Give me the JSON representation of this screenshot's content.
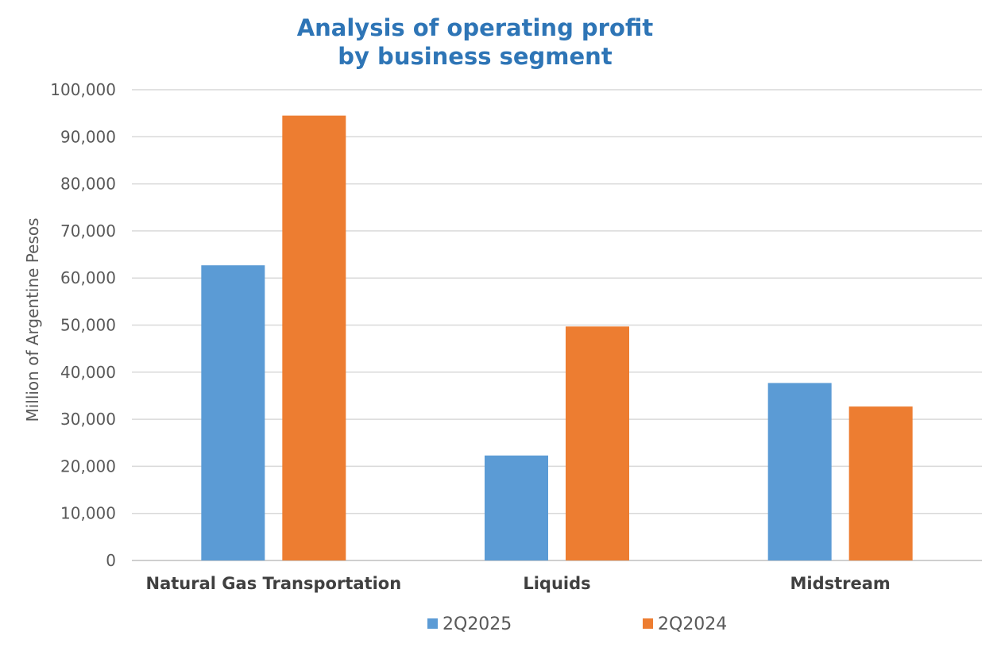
{
  "chart_data": {
    "type": "bar",
    "title": [
      "Analysis of operating profit",
      "by business segment"
    ],
    "ylabel": "Million of Argentine Pesos",
    "categories": [
      "Natural Gas Transportation",
      "Liquids",
      "Midstream"
    ],
    "series": [
      {
        "name": "2Q2025",
        "values": [
          62700,
          22300,
          37700
        ],
        "color": "#5B9BD5"
      },
      {
        "name": "2Q2024",
        "values": [
          94500,
          49700,
          32700
        ],
        "color": "#ED7D31"
      }
    ],
    "ylim": [
      0,
      100000
    ],
    "yticks": [
      0,
      10000,
      20000,
      30000,
      40000,
      50000,
      60000,
      70000,
      80000,
      90000,
      100000
    ],
    "ytick_labels": [
      "0",
      "10,000",
      "20,000",
      "30,000",
      "40,000",
      "50,000",
      "60,000",
      "70,000",
      "80,000",
      "90,000",
      "100,000"
    ],
    "grid": true,
    "legend_position": "bottom"
  }
}
